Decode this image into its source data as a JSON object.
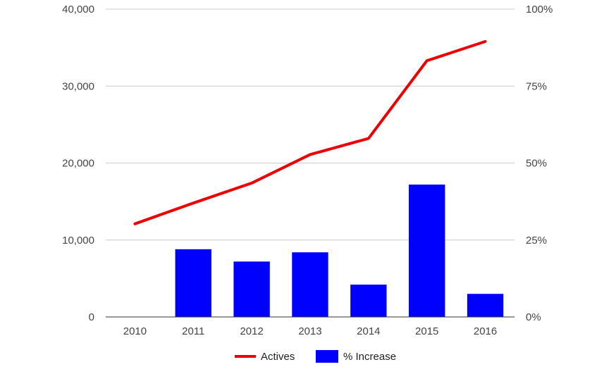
{
  "chart_data": {
    "type": "bar",
    "categories": [
      "2010",
      "2011",
      "2012",
      "2013",
      "2014",
      "2015",
      "2016"
    ],
    "series": [
      {
        "name": "% Increase",
        "type": "bar",
        "axis": "right",
        "color": "#0000ff",
        "values": [
          null,
          22,
          18,
          21,
          10.5,
          43,
          7.5
        ]
      },
      {
        "name": "Actives",
        "type": "line",
        "axis": "left",
        "color": "#ee0000",
        "values": [
          12100,
          14800,
          17400,
          21100,
          23200,
          33300,
          35800
        ]
      }
    ],
    "title": "",
    "xlabel": "",
    "ylabel": "",
    "y_left": {
      "ylim": [
        0,
        40000
      ],
      "ticks": [
        0,
        10000,
        20000,
        30000,
        40000
      ],
      "tick_labels": [
        "0",
        "10,000",
        "20,000",
        "30,000",
        "40,000"
      ]
    },
    "y_right": {
      "ylim": [
        0,
        100
      ],
      "ticks": [
        0,
        25,
        50,
        75,
        100
      ],
      "tick_labels": [
        "0%",
        "25%",
        "50%",
        "75%",
        "100%"
      ]
    },
    "grid": true,
    "legend": {
      "position": "bottom",
      "entries": [
        {
          "label": "Actives",
          "color": "#ee0000",
          "shape": "line"
        },
        {
          "label": "% Increase",
          "color": "#0000ff",
          "shape": "box"
        }
      ]
    }
  }
}
